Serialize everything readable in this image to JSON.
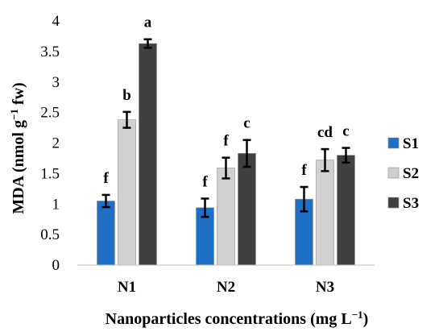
{
  "chart_data": {
    "type": "bar",
    "title": "",
    "categories": [
      "N1",
      "N2",
      "N3"
    ],
    "series": [
      {
        "name": "S1",
        "color": "#1f6fc6",
        "values": [
          1.05,
          0.94,
          1.08
        ],
        "errors": [
          0.1,
          0.15,
          0.2
        ],
        "labels": [
          "f",
          "f",
          "f"
        ]
      },
      {
        "name": "S2",
        "color": "#d0d0d0",
        "values": [
          2.38,
          1.59,
          1.72
        ],
        "errors": [
          0.13,
          0.17,
          0.18
        ],
        "labels": [
          "b",
          "f",
          "cd"
        ]
      },
      {
        "name": "S3",
        "color": "#404040",
        "values": [
          3.63,
          1.83,
          1.8
        ],
        "errors": [
          0.07,
          0.22,
          0.12
        ],
        "labels": [
          "a",
          "c",
          "c"
        ]
      }
    ],
    "ylim": [
      0,
      4
    ],
    "yticks": [
      "0",
      "0.5",
      "1",
      "1.5",
      "2",
      "2.5",
      "3",
      "3.5",
      "4"
    ],
    "ylabel_main": "MDA (nmol g",
    "ylabel_sup": "−1",
    "ylabel_end": " fw)",
    "xlabel_main": "Nanoparticles concentrations (mg L",
    "xlabel_sup": "−1",
    "xlabel_end": ")",
    "grid": false,
    "legend_position": "right"
  }
}
